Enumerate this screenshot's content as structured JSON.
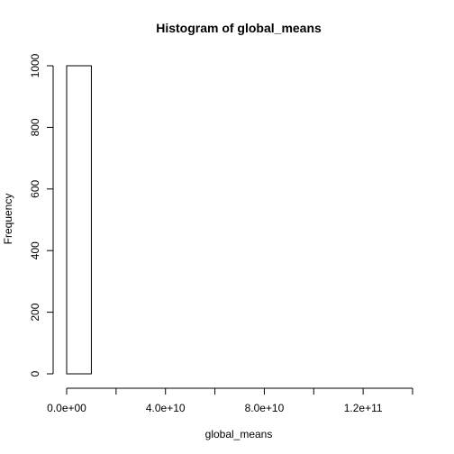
{
  "chart_data": {
    "type": "bar",
    "title": "Histogram of global_means",
    "xlabel": "global_means",
    "ylabel": "Frequency",
    "bins": [
      {
        "x0": 0,
        "x1": 10000000000,
        "count": 1000
      },
      {
        "x0": 10000000000,
        "x1": 20000000000,
        "count": 0
      },
      {
        "x0": 20000000000,
        "x1": 30000000000,
        "count": 0
      },
      {
        "x0": 30000000000,
        "x1": 40000000000,
        "count": 0
      },
      {
        "x0": 40000000000,
        "x1": 50000000000,
        "count": 0
      },
      {
        "x0": 50000000000,
        "x1": 60000000000,
        "count": 0
      },
      {
        "x0": 60000000000,
        "x1": 70000000000,
        "count": 0
      },
      {
        "x0": 70000000000,
        "x1": 80000000000,
        "count": 0
      },
      {
        "x0": 80000000000,
        "x1": 90000000000,
        "count": 0
      },
      {
        "x0": 90000000000,
        "x1": 100000000000,
        "count": 0
      },
      {
        "x0": 100000000000,
        "x1": 110000000000,
        "count": 0
      },
      {
        "x0": 110000000000,
        "x1": 120000000000,
        "count": 0
      },
      {
        "x0": 120000000000,
        "x1": 130000000000,
        "count": 0
      },
      {
        "x0": 130000000000,
        "x1": 140000000000,
        "count": 0
      }
    ],
    "xlim": [
      0,
      140000000000
    ],
    "ylim": [
      0,
      1000
    ],
    "x_ticks": [
      0,
      20000000000,
      40000000000,
      60000000000,
      80000000000,
      100000000000,
      120000000000,
      140000000000
    ],
    "x_tick_labels": [
      {
        "value": 0,
        "label": "0.0e+00"
      },
      {
        "value": 40000000000,
        "label": "4.0e+10"
      },
      {
        "value": 80000000000,
        "label": "8.0e+10"
      },
      {
        "value": 120000000000,
        "label": "1.2e+11"
      }
    ],
    "y_ticks": [
      0,
      200,
      400,
      600,
      800,
      1000
    ],
    "y_tick_labels": [
      "0",
      "200",
      "400",
      "600",
      "800",
      "1000"
    ],
    "grid": false,
    "colors": {
      "bar_fill": "#ffffff",
      "bar_stroke": "#000000"
    }
  }
}
